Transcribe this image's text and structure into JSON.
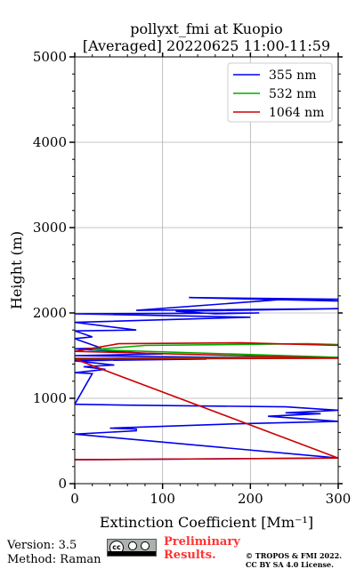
{
  "chart_data": {
    "type": "line",
    "title_line1": "pollyxt_fmi at Kuopio",
    "title_line2": "[Averaged] 20220625 11:00-11:59",
    "xlabel": "Extinction Coefficient [Mm⁻¹]",
    "ylabel": "Height (m)",
    "xlim": [
      0,
      300
    ],
    "ylim": [
      0,
      5000
    ],
    "x_ticks": [
      0,
      100,
      200,
      300
    ],
    "y_ticks": [
      0,
      1000,
      2000,
      3000,
      4000,
      5000
    ],
    "grid": true,
    "legend_placement": "top-right",
    "series": [
      {
        "name": "355 nm",
        "color": "#0000ee",
        "points": [
          [
            300,
            2160
          ],
          [
            130,
            2180
          ],
          [
            300,
            2140
          ],
          [
            240,
            2160
          ],
          [
            70,
            2030
          ],
          [
            300,
            2050
          ],
          [
            115,
            2020
          ],
          [
            160,
            1990
          ],
          [
            210,
            2000
          ],
          [
            0,
            1990
          ],
          [
            200,
            1950
          ],
          [
            0,
            1890
          ],
          [
            70,
            1800
          ],
          [
            0,
            1790
          ],
          [
            20,
            1720
          ],
          [
            0,
            1700
          ],
          [
            5,
            1680
          ],
          [
            30,
            1590
          ],
          [
            0,
            1580
          ],
          [
            75,
            1530
          ],
          [
            100,
            1520
          ],
          [
            0,
            1500
          ],
          [
            165,
            1480
          ],
          [
            300,
            1480
          ],
          [
            0,
            1450
          ],
          [
            150,
            1460
          ],
          [
            0,
            1440
          ],
          [
            45,
            1390
          ],
          [
            10,
            1370
          ],
          [
            35,
            1340
          ],
          [
            0,
            1300
          ],
          [
            20,
            1290
          ],
          [
            0,
            930
          ],
          [
            60,
            920
          ],
          [
            240,
            900
          ],
          [
            300,
            860
          ],
          [
            240,
            830
          ],
          [
            280,
            820
          ],
          [
            220,
            790
          ],
          [
            300,
            730
          ],
          [
            180,
            700
          ],
          [
            40,
            650
          ],
          [
            70,
            640
          ],
          [
            70,
            620
          ],
          [
            0,
            580
          ],
          [
            300,
            300
          ],
          [
            0,
            280
          ]
        ]
      },
      {
        "name": "532 nm",
        "color": "#00aa00",
        "points": [
          [
            300,
            1630
          ],
          [
            265,
            1640
          ],
          [
            80,
            1620
          ],
          [
            20,
            1570
          ],
          [
            300,
            1480
          ],
          [
            0,
            1470
          ]
        ]
      },
      {
        "name": "1064 nm",
        "color": "#cc0000",
        "points": [
          [
            300,
            1620
          ],
          [
            190,
            1650
          ],
          [
            50,
            1640
          ],
          [
            0,
            1550
          ],
          [
            300,
            1470
          ],
          [
            0,
            1460
          ],
          [
            300,
            300
          ],
          [
            0,
            280
          ]
        ]
      }
    ]
  },
  "footer": {
    "version": "Version: 3.5",
    "method": "Method: Raman",
    "preliminary_line1": "Preliminary",
    "preliminary_line2": "Results.",
    "copyright_line1": "© TROPOS & FMI 2022.",
    "copyright_line2": "CC BY SA 4.0 License.",
    "license_badge_text": "cc"
  }
}
